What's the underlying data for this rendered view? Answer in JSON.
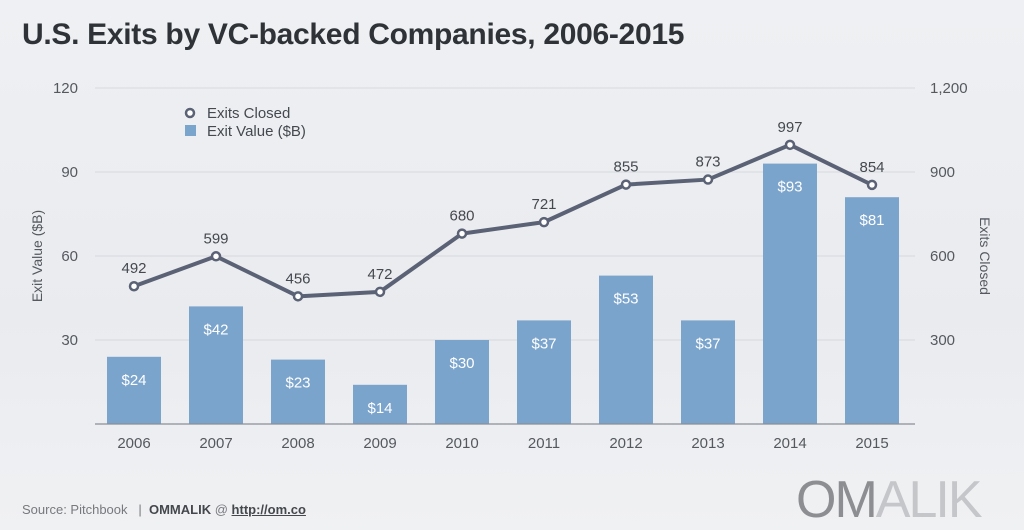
{
  "title": "U.S. Exits by VC-backed Companies, 2006-2015",
  "footer": {
    "source": "Source: Pitchbook",
    "separator": "|",
    "brand": "OMMALIK",
    "at": "@",
    "link": "http://om.co"
  },
  "logo": {
    "part1": "OM",
    "part2": "ALIK"
  },
  "chart_data": {
    "type": "bar+line",
    "title": "U.S. Exits by VC-backed Companies, 2006-2015",
    "categories": [
      "2006",
      "2007",
      "2008",
      "2009",
      "2010",
      "2011",
      "2012",
      "2013",
      "2014",
      "2015"
    ],
    "series": [
      {
        "name": "Exit Value ($B)",
        "type": "bar",
        "axis": "left",
        "values": [
          24,
          42,
          23,
          14,
          30,
          37,
          53,
          37,
          93,
          81
        ],
        "labels": [
          "$24",
          "$42",
          "$23",
          "$14",
          "$30",
          "$37",
          "$53",
          "$37",
          "$93",
          "$81"
        ],
        "color": "#7ba4cc"
      },
      {
        "name": "Exits Closed",
        "type": "line",
        "axis": "right",
        "values": [
          492,
          599,
          456,
          472,
          680,
          721,
          855,
          873,
          997,
          854
        ],
        "color": "#5b6275"
      }
    ],
    "ylabel": "Exit Value ($B)",
    "ylim": [
      0,
      120
    ],
    "yticks": [
      "30",
      "60",
      "90",
      "120"
    ],
    "y2label": "Exits Closed",
    "y2lim": [
      0,
      1200
    ],
    "y2ticks": [
      "300",
      "600",
      "900",
      "1,200"
    ],
    "grid": true,
    "legend": "top-left"
  }
}
